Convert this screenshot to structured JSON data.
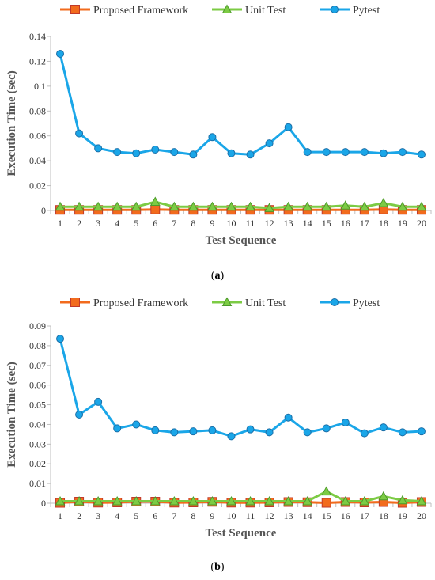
{
  "legend": [
    {
      "name": "Proposed Framework",
      "marker": "square",
      "color": "#F26B1D",
      "stroke": "#C0392B"
    },
    {
      "name": "Unit Test",
      "marker": "triangle",
      "color": "#7CCB44",
      "stroke": "#4C9A2A"
    },
    {
      "name": "Pytest",
      "marker": "circle",
      "color": "#1AA6E8",
      "stroke": "#1B6FA8"
    }
  ],
  "chart_data": [
    {
      "type": "line",
      "panel_label": "a",
      "xlabel": "Test Sequence",
      "ylabel": "Execution Time (sec)",
      "categories": [
        "1",
        "2",
        "3",
        "4",
        "5",
        "6",
        "7",
        "8",
        "9",
        "10",
        "11",
        "12",
        "13",
        "14",
        "15",
        "16",
        "17",
        "18",
        "19",
        "20"
      ],
      "ylim": [
        0,
        0.14
      ],
      "yticks": [
        "0",
        "0.02",
        "0.04",
        "0.06",
        "0.08",
        "0.1",
        "0.12",
        "0.14"
      ],
      "series": [
        {
          "name": "Proposed Framework",
          "values": [
            0.0005,
            0.0005,
            0.0005,
            0.0005,
            0.0005,
            0.0008,
            0.0005,
            0.0005,
            0.0005,
            0.0005,
            0.0005,
            0.0005,
            0.0005,
            0.0005,
            0.0005,
            0.0005,
            0.0005,
            0.0008,
            0.0005,
            0.0005
          ]
        },
        {
          "name": "Unit Test",
          "values": [
            0.003,
            0.003,
            0.003,
            0.003,
            0.003,
            0.007,
            0.003,
            0.003,
            0.003,
            0.003,
            0.003,
            0.002,
            0.003,
            0.003,
            0.003,
            0.004,
            0.003,
            0.006,
            0.003,
            0.003
          ]
        },
        {
          "name": "Pytest",
          "values": [
            0.126,
            0.062,
            0.05,
            0.047,
            0.046,
            0.049,
            0.047,
            0.045,
            0.059,
            0.046,
            0.045,
            0.054,
            0.067,
            0.047,
            0.047,
            0.047,
            0.047,
            0.046,
            0.047,
            0.045
          ]
        }
      ]
    },
    {
      "type": "line",
      "panel_label": "b",
      "xlabel": "Test Sequence",
      "ylabel": "Execution Time (sec)",
      "categories": [
        "1",
        "2",
        "3",
        "4",
        "5",
        "6",
        "7",
        "8",
        "9",
        "10",
        "11",
        "12",
        "13",
        "14",
        "15",
        "16",
        "17",
        "18",
        "19",
        "20"
      ],
      "ylim": [
        0,
        0.09
      ],
      "yticks": [
        "0",
        "0.01",
        "0.02",
        "0.03",
        "0.04",
        "0.05",
        "0.06",
        "0.07",
        "0.08",
        "0.09"
      ],
      "series": [
        {
          "name": "Proposed Framework",
          "values": [
            0.0002,
            0.0008,
            0.0003,
            0.0004,
            0.0008,
            0.0008,
            0.0003,
            0.0004,
            0.0007,
            0.0003,
            0.0003,
            0.0004,
            0.0006,
            0.0005,
            0.0002,
            0.0006,
            0.0004,
            0.0006,
            0.0002,
            0.0006
          ]
        },
        {
          "name": "Unit Test",
          "values": [
            0.001,
            0.001,
            0.001,
            0.001,
            0.001,
            0.001,
            0.001,
            0.001,
            0.001,
            0.001,
            0.001,
            0.001,
            0.001,
            0.001,
            0.006,
            0.001,
            0.001,
            0.0035,
            0.0015,
            0.001
          ]
        },
        {
          "name": "Pytest",
          "values": [
            0.0835,
            0.045,
            0.0515,
            0.038,
            0.04,
            0.037,
            0.036,
            0.0365,
            0.037,
            0.034,
            0.0375,
            0.036,
            0.0435,
            0.036,
            0.038,
            0.041,
            0.0355,
            0.0385,
            0.036,
            0.0365
          ]
        }
      ]
    }
  ]
}
